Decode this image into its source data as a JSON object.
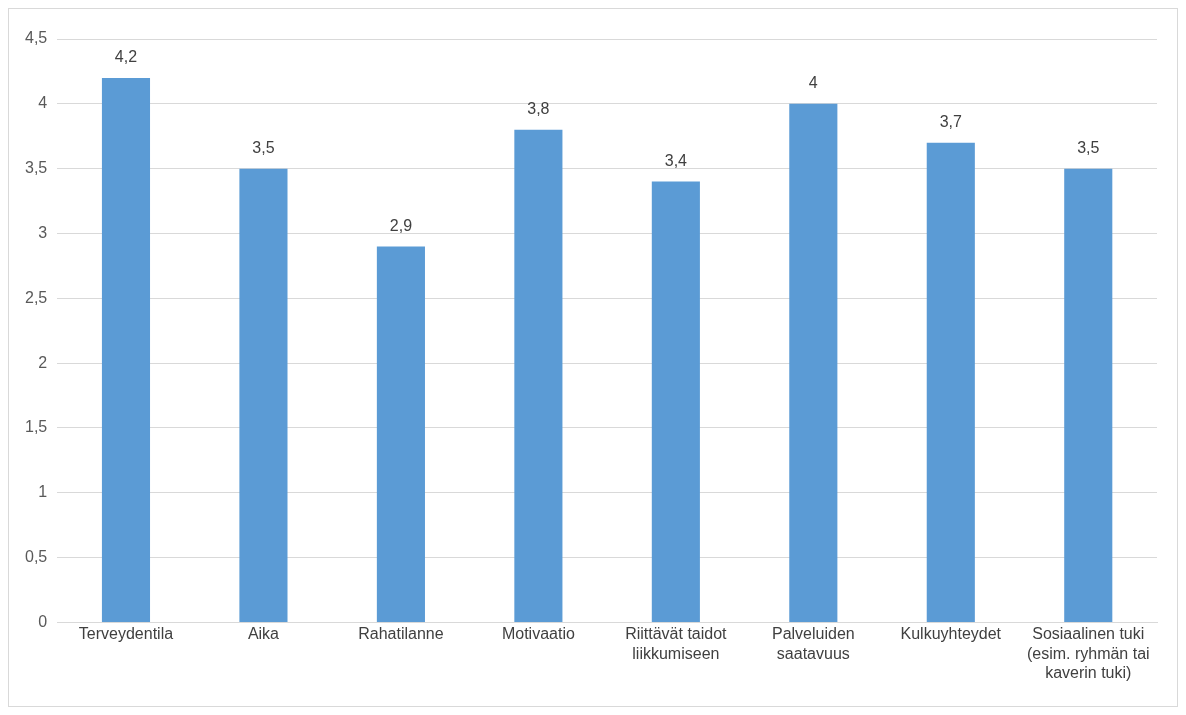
{
  "chart_data": {
    "type": "bar",
    "categories": [
      "Terveydentila",
      "Aika",
      "Rahatilanne",
      "Motivaatio",
      "Riittävät taidot liikkumiseen",
      "Palveluiden saatavuus",
      "Kulkuyhteydet",
      "Sosiaalinen tuki (esim. ryhmän tai kaverin tuki)"
    ],
    "values": [
      4.2,
      3.5,
      2.9,
      3.8,
      3.4,
      4,
      3.7,
      3.5
    ],
    "value_labels": [
      "4,2",
      "3,5",
      "2,9",
      "3,8",
      "3,4",
      "4",
      "3,7",
      "3,5"
    ],
    "color": "#5b9bd5",
    "ylim": [
      0,
      4.5
    ],
    "yticks": [
      0,
      {
        "value": 0.5,
        "label": "0,5"
      },
      1,
      {
        "value": 1.5,
        "label": "1,5"
      },
      2,
      {
        "value": 2.5,
        "label": "2,5"
      },
      3,
      {
        "value": 3.5,
        "label": "3,5"
      },
      4,
      {
        "value": 4.5,
        "label": "4,5"
      }
    ],
    "grid": "y",
    "legend": false
  }
}
